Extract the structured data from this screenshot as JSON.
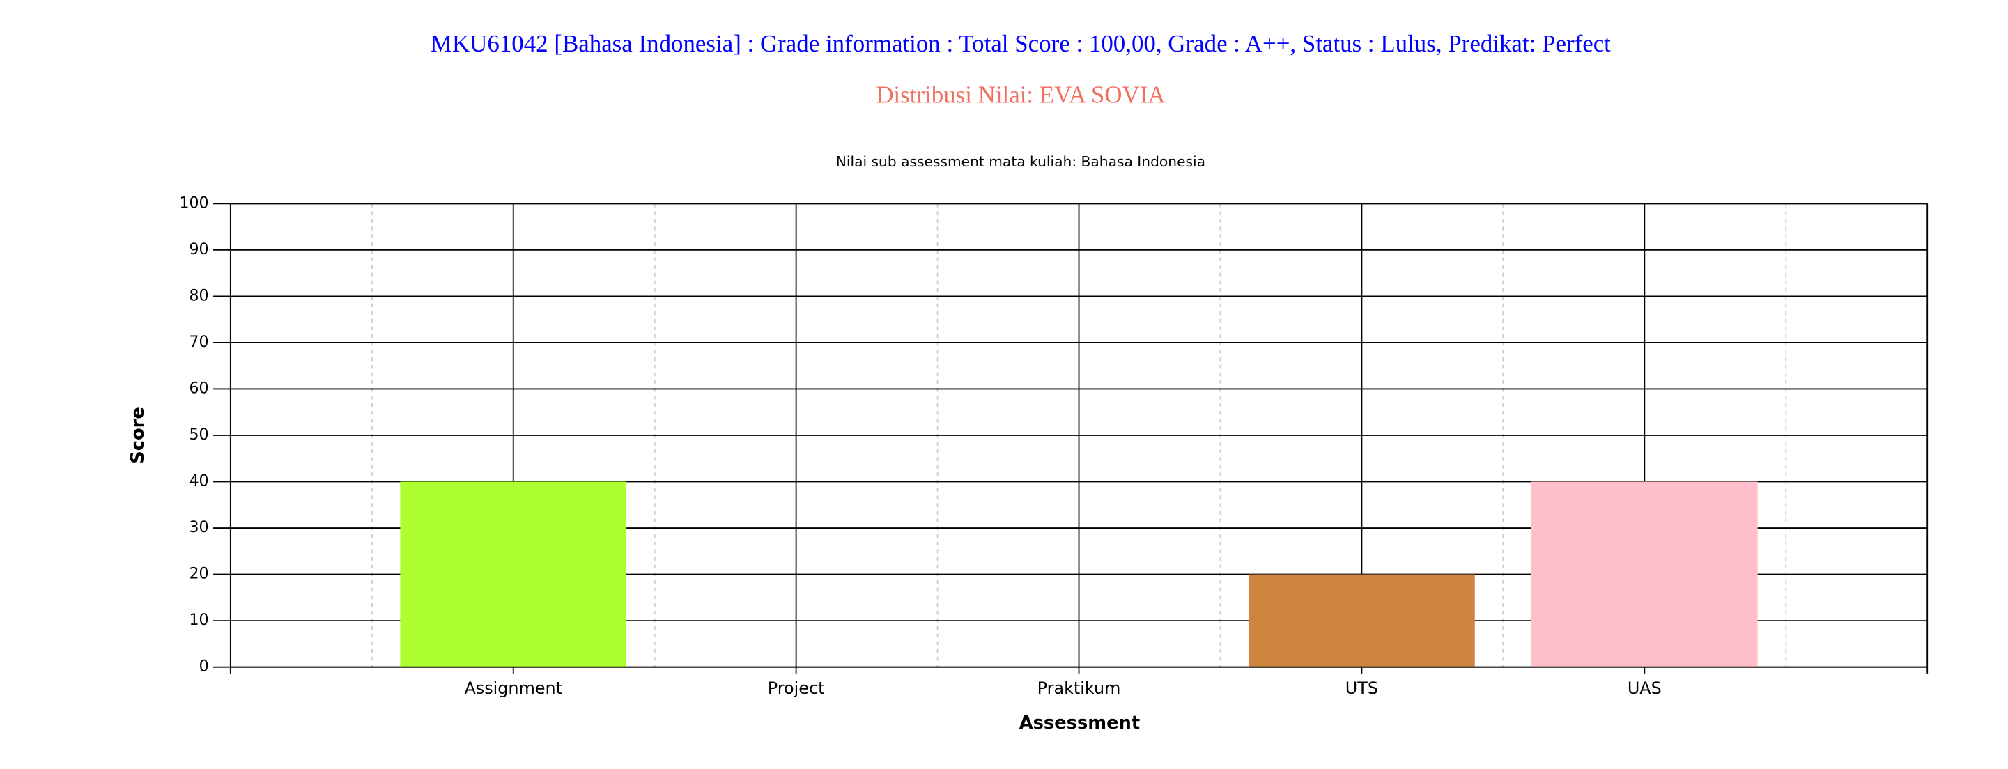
{
  "header": {
    "title": "MKU61042 [Bahasa Indonesia] : Grade information : Total Score : 100,00, Grade : A++, Status : Lulus, Predikat: Perfect",
    "subtitle": "Distribusi Nilai: EVA SOVIA"
  },
  "chart_data": {
    "type": "bar",
    "title": "Nilai sub assessment mata kuliah: Bahasa Indonesia",
    "x_label": "Assessment",
    "y_label": "Score",
    "categories": [
      "Assignment",
      "Project",
      "Praktikum",
      "UTS",
      "UAS"
    ],
    "values": [
      40,
      0,
      0,
      20,
      40
    ],
    "colors": [
      "#adff2f",
      "#d2691e",
      "#87ceeb",
      "#cd853f",
      "#ffc0cb"
    ],
    "ylim": [
      0,
      100
    ],
    "yticks": [
      0,
      10,
      20,
      30,
      40,
      50,
      60,
      70,
      80,
      90,
      100
    ],
    "grid": true
  }
}
